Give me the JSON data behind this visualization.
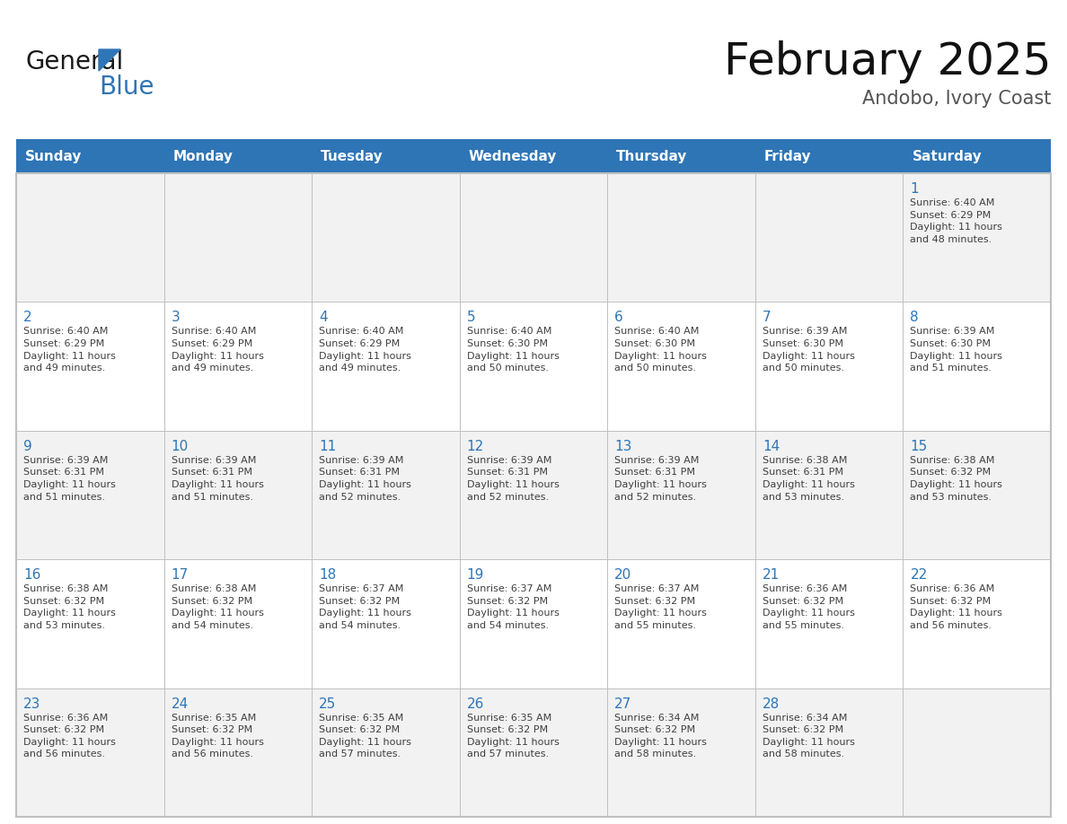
{
  "title": "February 2025",
  "subtitle": "Andobo, Ivory Coast",
  "header_bg": "#2E75B6",
  "header_text_color": "#FFFFFF",
  "cell_bg_light": "#FFFFFF",
  "cell_bg_alt": "#F2F2F2",
  "day_number_color": "#2E75B6",
  "text_color": "#404040",
  "border_color": "#C0C0C0",
  "days_of_week": [
    "Sunday",
    "Monday",
    "Tuesday",
    "Wednesday",
    "Thursday",
    "Friday",
    "Saturday"
  ],
  "weeks": [
    [
      {
        "day": null,
        "info": null
      },
      {
        "day": null,
        "info": null
      },
      {
        "day": null,
        "info": null
      },
      {
        "day": null,
        "info": null
      },
      {
        "day": null,
        "info": null
      },
      {
        "day": null,
        "info": null
      },
      {
        "day": 1,
        "info": "Sunrise: 6:40 AM\nSunset: 6:29 PM\nDaylight: 11 hours\nand 48 minutes."
      }
    ],
    [
      {
        "day": 2,
        "info": "Sunrise: 6:40 AM\nSunset: 6:29 PM\nDaylight: 11 hours\nand 49 minutes."
      },
      {
        "day": 3,
        "info": "Sunrise: 6:40 AM\nSunset: 6:29 PM\nDaylight: 11 hours\nand 49 minutes."
      },
      {
        "day": 4,
        "info": "Sunrise: 6:40 AM\nSunset: 6:29 PM\nDaylight: 11 hours\nand 49 minutes."
      },
      {
        "day": 5,
        "info": "Sunrise: 6:40 AM\nSunset: 6:30 PM\nDaylight: 11 hours\nand 50 minutes."
      },
      {
        "day": 6,
        "info": "Sunrise: 6:40 AM\nSunset: 6:30 PM\nDaylight: 11 hours\nand 50 minutes."
      },
      {
        "day": 7,
        "info": "Sunrise: 6:39 AM\nSunset: 6:30 PM\nDaylight: 11 hours\nand 50 minutes."
      },
      {
        "day": 8,
        "info": "Sunrise: 6:39 AM\nSunset: 6:30 PM\nDaylight: 11 hours\nand 51 minutes."
      }
    ],
    [
      {
        "day": 9,
        "info": "Sunrise: 6:39 AM\nSunset: 6:31 PM\nDaylight: 11 hours\nand 51 minutes."
      },
      {
        "day": 10,
        "info": "Sunrise: 6:39 AM\nSunset: 6:31 PM\nDaylight: 11 hours\nand 51 minutes."
      },
      {
        "day": 11,
        "info": "Sunrise: 6:39 AM\nSunset: 6:31 PM\nDaylight: 11 hours\nand 52 minutes."
      },
      {
        "day": 12,
        "info": "Sunrise: 6:39 AM\nSunset: 6:31 PM\nDaylight: 11 hours\nand 52 minutes."
      },
      {
        "day": 13,
        "info": "Sunrise: 6:39 AM\nSunset: 6:31 PM\nDaylight: 11 hours\nand 52 minutes."
      },
      {
        "day": 14,
        "info": "Sunrise: 6:38 AM\nSunset: 6:31 PM\nDaylight: 11 hours\nand 53 minutes."
      },
      {
        "day": 15,
        "info": "Sunrise: 6:38 AM\nSunset: 6:32 PM\nDaylight: 11 hours\nand 53 minutes."
      }
    ],
    [
      {
        "day": 16,
        "info": "Sunrise: 6:38 AM\nSunset: 6:32 PM\nDaylight: 11 hours\nand 53 minutes."
      },
      {
        "day": 17,
        "info": "Sunrise: 6:38 AM\nSunset: 6:32 PM\nDaylight: 11 hours\nand 54 minutes."
      },
      {
        "day": 18,
        "info": "Sunrise: 6:37 AM\nSunset: 6:32 PM\nDaylight: 11 hours\nand 54 minutes."
      },
      {
        "day": 19,
        "info": "Sunrise: 6:37 AM\nSunset: 6:32 PM\nDaylight: 11 hours\nand 54 minutes."
      },
      {
        "day": 20,
        "info": "Sunrise: 6:37 AM\nSunset: 6:32 PM\nDaylight: 11 hours\nand 55 minutes."
      },
      {
        "day": 21,
        "info": "Sunrise: 6:36 AM\nSunset: 6:32 PM\nDaylight: 11 hours\nand 55 minutes."
      },
      {
        "day": 22,
        "info": "Sunrise: 6:36 AM\nSunset: 6:32 PM\nDaylight: 11 hours\nand 56 minutes."
      }
    ],
    [
      {
        "day": 23,
        "info": "Sunrise: 6:36 AM\nSunset: 6:32 PM\nDaylight: 11 hours\nand 56 minutes."
      },
      {
        "day": 24,
        "info": "Sunrise: 6:35 AM\nSunset: 6:32 PM\nDaylight: 11 hours\nand 56 minutes."
      },
      {
        "day": 25,
        "info": "Sunrise: 6:35 AM\nSunset: 6:32 PM\nDaylight: 11 hours\nand 57 minutes."
      },
      {
        "day": 26,
        "info": "Sunrise: 6:35 AM\nSunset: 6:32 PM\nDaylight: 11 hours\nand 57 minutes."
      },
      {
        "day": 27,
        "info": "Sunrise: 6:34 AM\nSunset: 6:32 PM\nDaylight: 11 hours\nand 58 minutes."
      },
      {
        "day": 28,
        "info": "Sunrise: 6:34 AM\nSunset: 6:32 PM\nDaylight: 11 hours\nand 58 minutes."
      },
      {
        "day": null,
        "info": null
      }
    ]
  ],
  "logo_general_color": "#1a1a1a",
  "logo_blue_color": "#2E75B6",
  "title_fontsize": 36,
  "subtitle_fontsize": 15,
  "header_fontsize": 11,
  "day_num_fontsize": 11,
  "info_fontsize": 8
}
